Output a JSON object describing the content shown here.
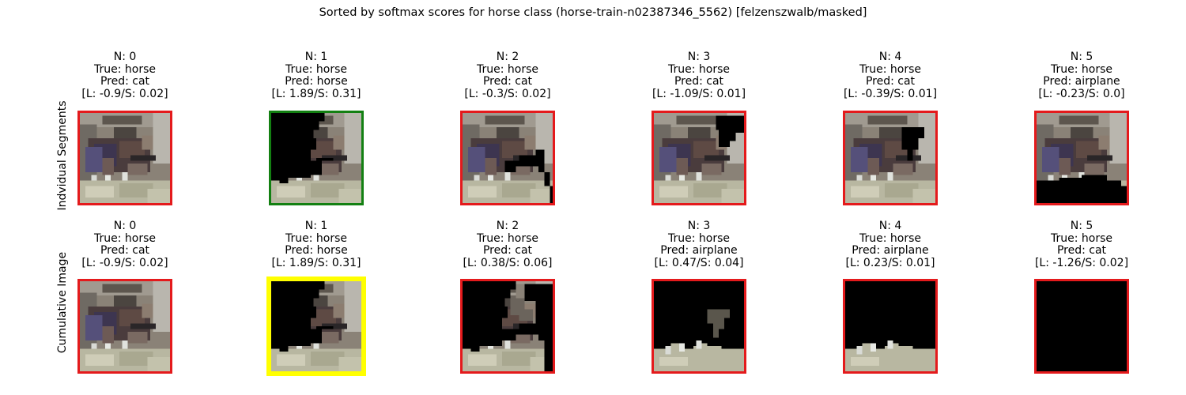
{
  "title": "Sorted by softmax scores for horse class (horse-train-n02387346_5562) [felzenszwalb/masked]",
  "rows": [
    {
      "label": "Indvidual Segments",
      "cells": [
        {
          "n": "N: 0",
          "true_label": "True: horse",
          "pred": "Pred: cat",
          "scores": "[L: -0.9/S: 0.02]",
          "frame_color": "#e41a1c",
          "mask": "none"
        },
        {
          "n": "N: 1",
          "true_label": "True: horse",
          "pred": "Pred: horse",
          "scores": "[L: 1.89/S: 0.31]",
          "frame_color": "#138012",
          "mask": "seg1"
        },
        {
          "n": "N: 2",
          "true_label": "True: horse",
          "pred": "Pred: cat",
          "scores": "[L: -0.3/S: 0.02]",
          "frame_color": "#e41a1c",
          "mask": "seg2"
        },
        {
          "n": "N: 3",
          "true_label": "True: horse",
          "pred": "Pred: cat",
          "scores": "[L: -1.09/S: 0.01]",
          "frame_color": "#e41a1c",
          "mask": "seg3"
        },
        {
          "n": "N: 4",
          "true_label": "True: horse",
          "pred": "Pred: cat",
          "scores": "[L: -0.39/S: 0.01]",
          "frame_color": "#e41a1c",
          "mask": "seg4"
        },
        {
          "n": "N: 5",
          "true_label": "True: horse",
          "pred": "Pred: airplane",
          "scores": "[L: -0.23/S: 0.0]",
          "frame_color": "#e41a1c",
          "mask": "seg5"
        }
      ]
    },
    {
      "label": "Cumulative Image",
      "cells": [
        {
          "n": "N: 0",
          "true_label": "True: horse",
          "pred": "Pred: cat",
          "scores": "[L: -0.9/S: 0.02]",
          "frame_color": "#e41a1c",
          "mask": "none"
        },
        {
          "n": "N: 1",
          "true_label": "True: horse",
          "pred": "Pred: horse",
          "scores": "[L: 1.89/S: 0.31]",
          "frame_color": "#ffff00",
          "mask": "cum1"
        },
        {
          "n": "N: 2",
          "true_label": "True: horse",
          "pred": "Pred: cat",
          "scores": "[L: 0.38/S: 0.06]",
          "frame_color": "#e41a1c",
          "mask": "cum2"
        },
        {
          "n": "N: 3",
          "true_label": "True: horse",
          "pred": "Pred: airplane",
          "scores": "[L: 0.47/S: 0.04]",
          "frame_color": "#e41a1c",
          "mask": "cum3"
        },
        {
          "n": "N: 4",
          "true_label": "True: horse",
          "pred": "Pred: airplane",
          "scores": "[L: 0.23/S: 0.01]",
          "frame_color": "#e41a1c",
          "mask": "cum4"
        },
        {
          "n": "N: 5",
          "true_label": "True: horse",
          "pred": "Pred: cat",
          "scores": "[L: -1.26/S: 0.02]",
          "frame_color": "#e41a1c",
          "mask": "all"
        }
      ]
    }
  ]
}
